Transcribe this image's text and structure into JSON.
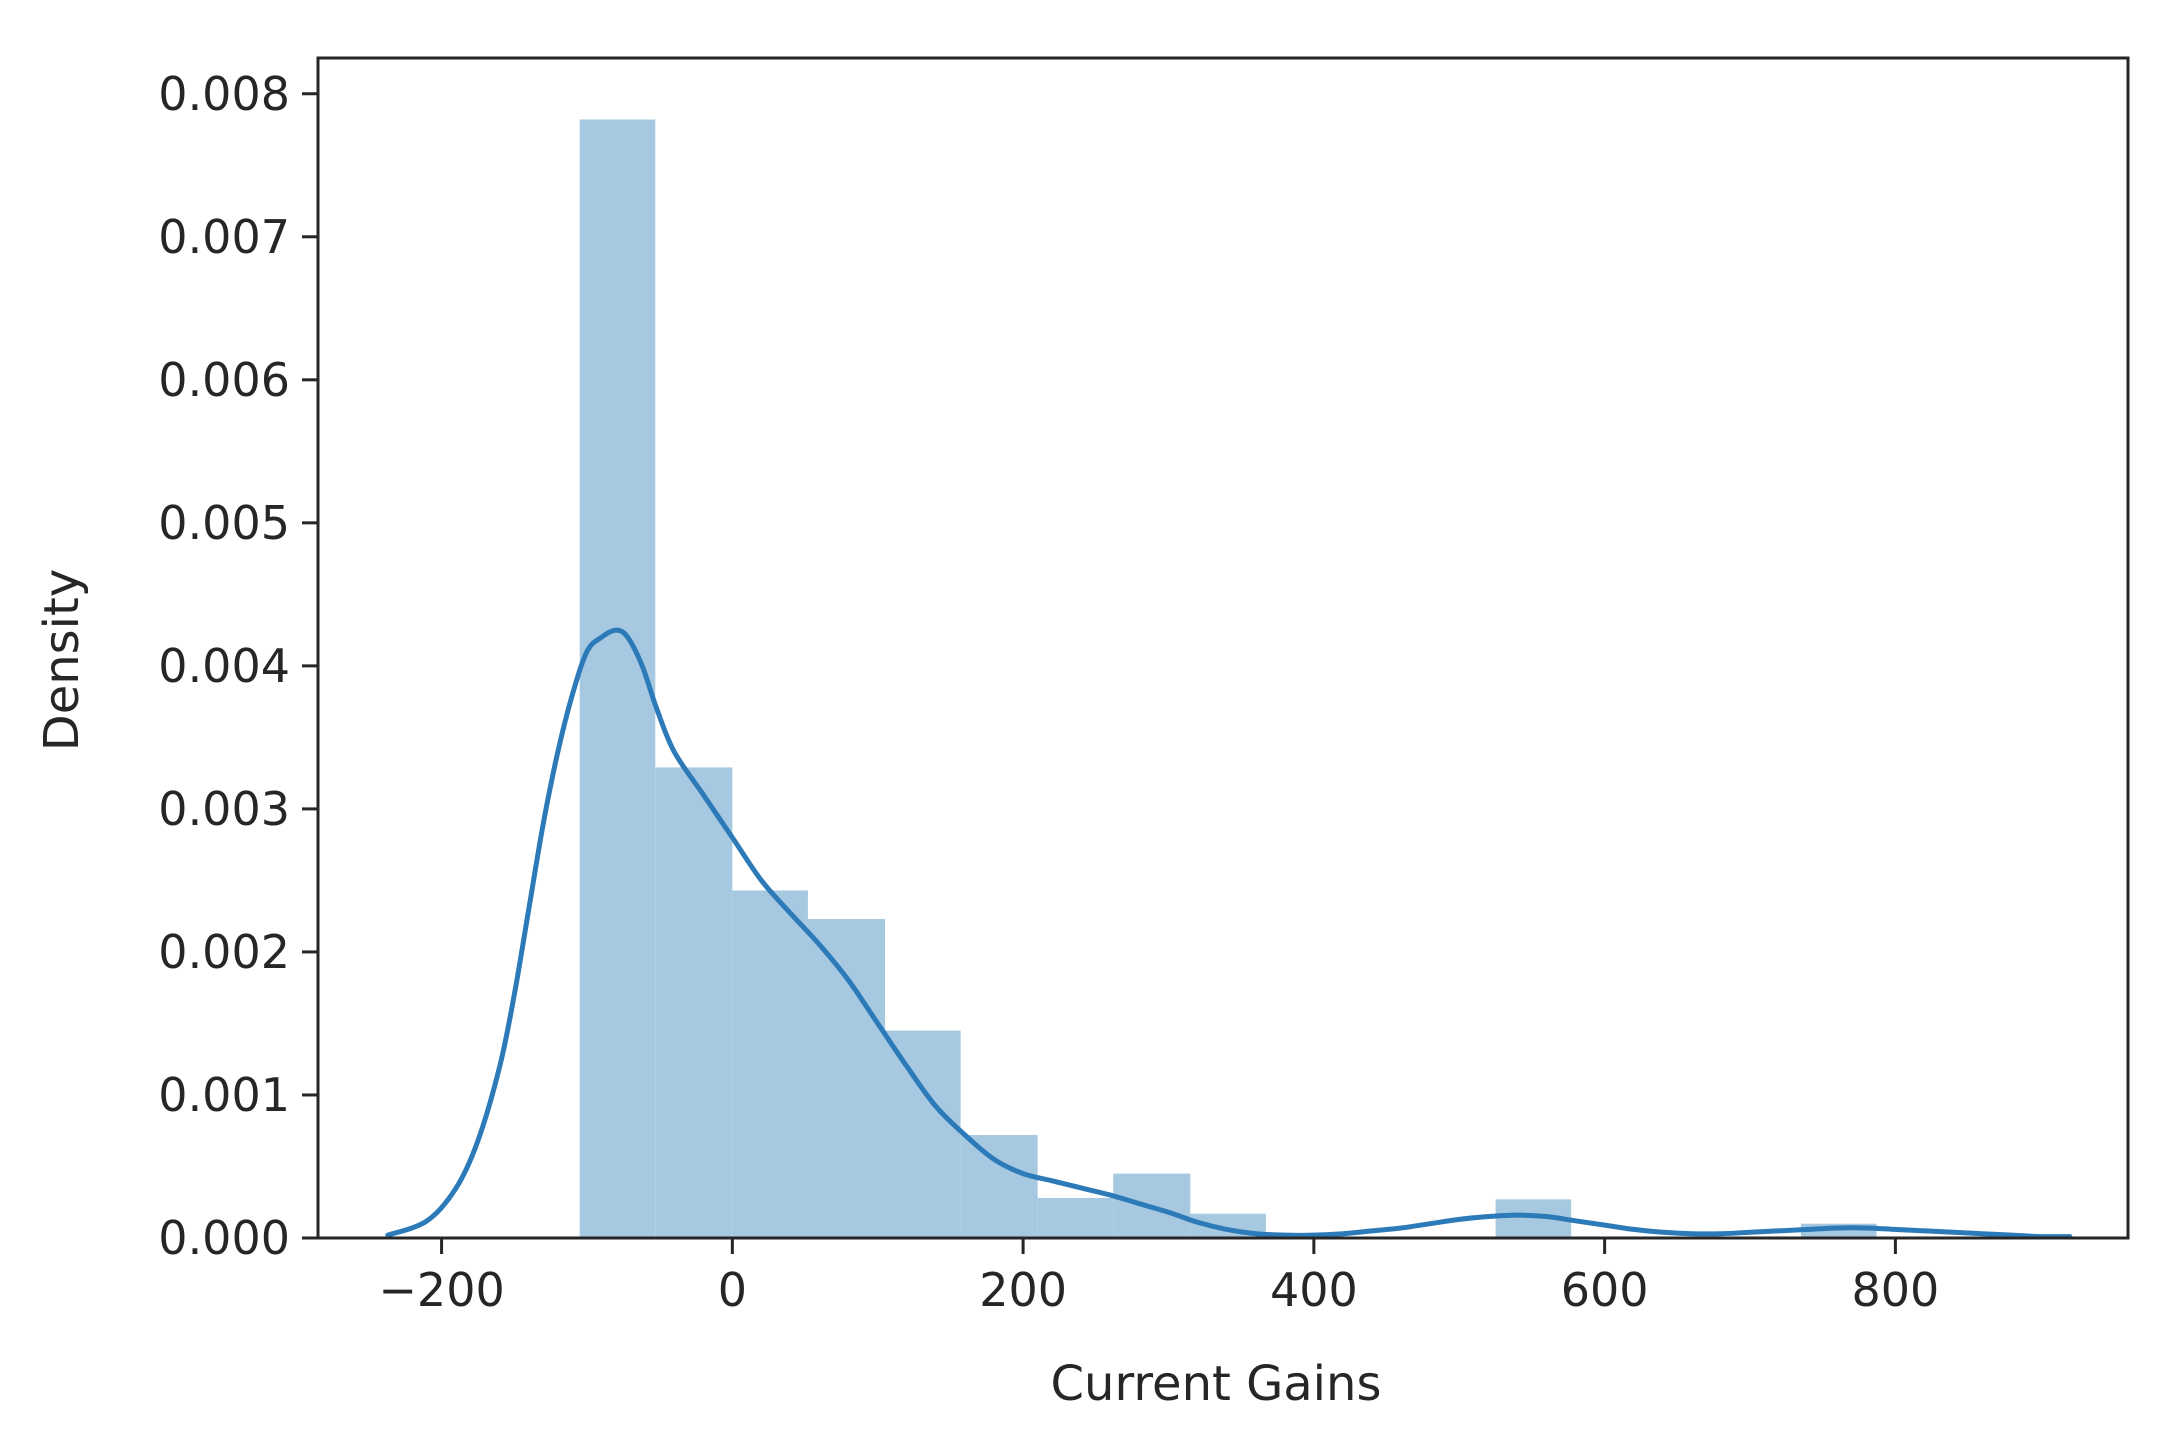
{
  "chart_data": {
    "type": "histogram+kde",
    "xlabel": "Current Gains",
    "ylabel": "Density",
    "xlim": [
      -285,
      960
    ],
    "ylim": [
      0,
      0.00825
    ],
    "xticks": [
      -200,
      0,
      200,
      400,
      600,
      800
    ],
    "xtick_labels": [
      "−200",
      "0",
      "200",
      "400",
      "600",
      "800"
    ],
    "yticks": [
      0,
      0.001,
      0.002,
      0.003,
      0.004,
      0.005,
      0.006,
      0.007,
      0.008
    ],
    "ytick_labels": [
      "0.000",
      "0.001",
      "0.002",
      "0.003",
      "0.004",
      "0.005",
      "0.006",
      "0.007",
      "0.008"
    ],
    "grid": false,
    "colors": {
      "bar": "#a6c8e0",
      "line": "#2d7ab9"
    },
    "bins": [
      {
        "x0": -105,
        "x1": -53,
        "density": 0.00782
      },
      {
        "x0": -53,
        "x1": 0,
        "density": 0.00329
      },
      {
        "x0": 0,
        "x1": 52,
        "density": 0.00243
      },
      {
        "x0": 52,
        "x1": 105,
        "density": 0.00223
      },
      {
        "x0": 105,
        "x1": 157,
        "density": 0.00145
      },
      {
        "x0": 157,
        "x1": 210,
        "density": 0.00072
      },
      {
        "x0": 210,
        "x1": 262,
        "density": 0.00028
      },
      {
        "x0": 262,
        "x1": 315,
        "density": 0.00045
      },
      {
        "x0": 315,
        "x1": 367,
        "density": 0.00017
      },
      {
        "x0": 367,
        "x1": 420,
        "density": 0.0
      },
      {
        "x0": 420,
        "x1": 472,
        "density": 0.0
      },
      {
        "x0": 472,
        "x1": 525,
        "density": 0.0
      },
      {
        "x0": 525,
        "x1": 577,
        "density": 0.00027
      },
      {
        "x0": 577,
        "x1": 630,
        "density": 0.0
      },
      {
        "x0": 630,
        "x1": 682,
        "density": 0.0
      },
      {
        "x0": 682,
        "x1": 735,
        "density": 0.0
      },
      {
        "x0": 735,
        "x1": 787,
        "density": 0.0001
      }
    ],
    "kde": {
      "x": [
        -237,
        -210,
        -190,
        -175,
        -160,
        -150,
        -140,
        -130,
        -120,
        -110,
        -100,
        -90,
        -80,
        -72,
        -62,
        -52,
        -40,
        -20,
        0,
        20,
        40,
        60,
        80,
        100,
        120,
        140,
        160,
        180,
        200,
        220,
        240,
        260,
        280,
        300,
        320,
        340,
        360,
        380,
        400,
        420,
        440,
        460,
        480,
        500,
        520,
        540,
        560,
        580,
        600,
        620,
        640,
        660,
        680,
        700,
        720,
        740,
        760,
        780,
        800,
        820,
        840,
        860,
        880,
        900,
        920
      ],
      "y": [
        2e-05,
        0.00012,
        0.00035,
        0.00068,
        0.0012,
        0.0017,
        0.0023,
        0.0029,
        0.0034,
        0.0038,
        0.0041,
        0.0042,
        0.00425,
        0.0042,
        0.004,
        0.0037,
        0.0034,
        0.0031,
        0.0028,
        0.0025,
        0.00227,
        0.00205,
        0.0018,
        0.0015,
        0.0012,
        0.00092,
        0.00072,
        0.00055,
        0.00045,
        0.0004,
        0.00035,
        0.0003,
        0.00024,
        0.00018,
        0.00011,
        6e-05,
        3e-05,
        2e-05,
        2e-05,
        3e-05,
        5e-05,
        7e-05,
        0.0001,
        0.00013,
        0.00015,
        0.00016,
        0.00015,
        0.00012,
        9e-05,
        6e-05,
        4e-05,
        3e-05,
        3e-05,
        4e-05,
        5e-05,
        6e-05,
        7e-05,
        7e-05,
        6e-05,
        5e-05,
        4e-05,
        3e-05,
        2e-05,
        1e-05,
        1e-05
      ]
    }
  }
}
